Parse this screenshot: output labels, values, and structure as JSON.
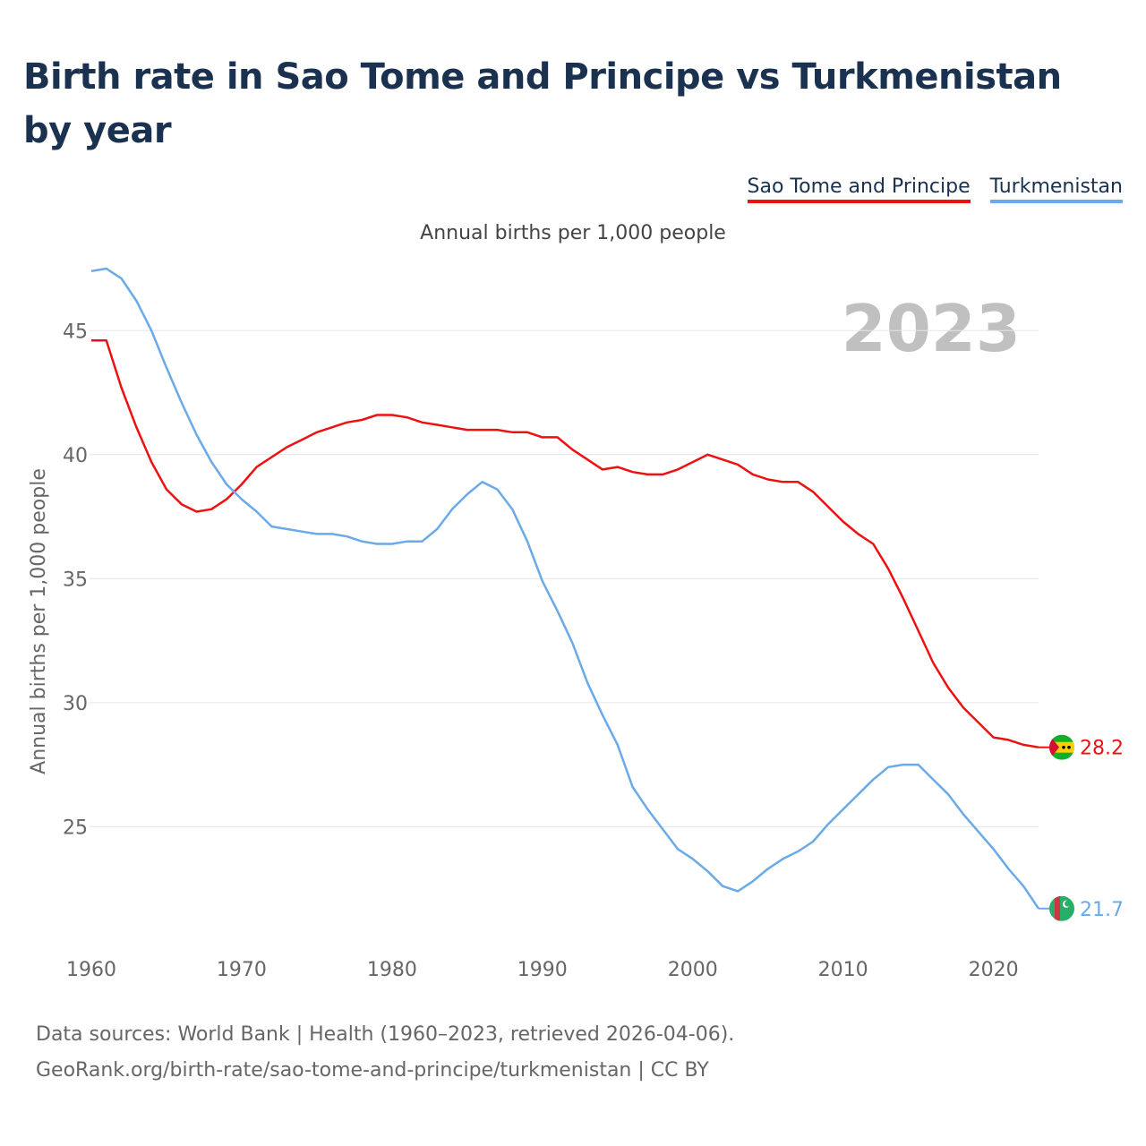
{
  "title": "Birth rate in Sao Tome and Principe vs Turkmenistan by year",
  "legend": [
    {
      "name": "Sao Tome and Principe",
      "color": "#ee1111"
    },
    {
      "name": "Turkmenistan",
      "color": "#6aaae8"
    }
  ],
  "subtitle": "Annual births per 1,000 people",
  "year_label": "2023",
  "footer": {
    "line1": "Data sources: World Bank | Health (1960–2023, retrieved 2026-04-06).",
    "line2": "GeoRank.org/birth-rate/sao-tome-and-principe/turkmenistan | CC BY"
  },
  "chart_data": {
    "type": "line",
    "title": "Birth rate in Sao Tome and Principe vs Turkmenistan by year",
    "xlabel": "",
    "ylabel": "Annual births per 1,000 people",
    "xlim": [
      1960,
      2023
    ],
    "ylim": [
      20.5,
      47.5
    ],
    "x_ticks": [
      1960,
      1970,
      1980,
      1990,
      2000,
      2010,
      2020
    ],
    "y_ticks": [
      25,
      30,
      35,
      40,
      45
    ],
    "grid": true,
    "x": [
      1960,
      1961,
      1962,
      1963,
      1964,
      1965,
      1966,
      1967,
      1968,
      1969,
      1970,
      1971,
      1972,
      1973,
      1974,
      1975,
      1976,
      1977,
      1978,
      1979,
      1980,
      1981,
      1982,
      1983,
      1984,
      1985,
      1986,
      1987,
      1988,
      1989,
      1990,
      1991,
      1992,
      1993,
      1994,
      1995,
      1996,
      1997,
      1998,
      1999,
      2000,
      2001,
      2002,
      2003,
      2004,
      2005,
      2006,
      2007,
      2008,
      2009,
      2010,
      2011,
      2012,
      2013,
      2014,
      2015,
      2016,
      2017,
      2018,
      2019,
      2020,
      2021,
      2022,
      2023
    ],
    "series": [
      {
        "name": "Sao Tome and Principe",
        "color": "#ee1111",
        "end_label": "28.2",
        "values": [
          44.6,
          44.6,
          42.7,
          41.1,
          39.7,
          38.6,
          38.0,
          37.7,
          37.8,
          38.2,
          38.8,
          39.5,
          39.9,
          40.3,
          40.6,
          40.9,
          41.1,
          41.3,
          41.4,
          41.6,
          41.6,
          41.5,
          41.3,
          41.2,
          41.1,
          41.0,
          41.0,
          41.0,
          40.9,
          40.9,
          40.7,
          40.7,
          40.2,
          39.8,
          39.4,
          39.5,
          39.3,
          39.2,
          39.2,
          39.4,
          39.7,
          40.0,
          39.8,
          39.6,
          39.2,
          39.0,
          38.9,
          38.9,
          38.5,
          37.9,
          37.3,
          36.8,
          36.4,
          35.4,
          34.2,
          32.9,
          31.6,
          30.6,
          29.8,
          29.2,
          28.6,
          28.5,
          28.3,
          28.2
        ]
      },
      {
        "name": "Turkmenistan",
        "color": "#6aaae8",
        "end_label": "21.7",
        "values": [
          47.4,
          47.5,
          47.1,
          46.2,
          45.0,
          43.5,
          42.1,
          40.8,
          39.7,
          38.8,
          38.2,
          37.7,
          37.1,
          37.0,
          36.9,
          36.8,
          36.8,
          36.7,
          36.5,
          36.4,
          36.4,
          36.5,
          36.5,
          37.0,
          37.8,
          38.4,
          38.9,
          38.6,
          37.8,
          36.5,
          34.9,
          33.7,
          32.4,
          30.8,
          29.5,
          28.3,
          26.6,
          25.7,
          24.9,
          24.1,
          23.7,
          23.2,
          22.6,
          22.4,
          22.8,
          23.3,
          23.7,
          24.0,
          24.4,
          25.1,
          25.7,
          26.3,
          26.9,
          27.4,
          27.5,
          27.5,
          26.9,
          26.3,
          25.5,
          24.8,
          24.1,
          23.3,
          22.6,
          21.7
        ]
      }
    ]
  }
}
